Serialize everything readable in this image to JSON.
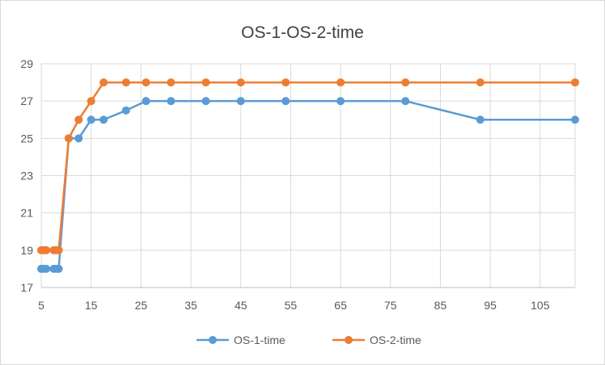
{
  "chart_data": {
    "type": "line",
    "title": "OS-1-OS-2-time",
    "xlabel": "",
    "ylabel": "",
    "xlim": [
      5,
      112
    ],
    "ylim": [
      17,
      29
    ],
    "x_ticks": [
      5,
      15,
      25,
      35,
      45,
      55,
      65,
      75,
      85,
      95,
      105
    ],
    "y_ticks": [
      17,
      19,
      21,
      23,
      25,
      27,
      29
    ],
    "grid": {
      "vertical": true,
      "horizontal": true
    },
    "legend_position": "bottom",
    "series": [
      {
        "name": "OS-1-time",
        "color": "#5b9bd5",
        "x": [
          5,
          5.5,
          6,
          7.5,
          8,
          8.5,
          10.5,
          12.5,
          15,
          17.5,
          22,
          26,
          31,
          38,
          45,
          54,
          65,
          78,
          93,
          112
        ],
        "y": [
          18,
          18,
          18,
          18,
          18,
          18,
          25,
          25,
          26,
          26,
          26.5,
          27,
          27,
          27,
          27,
          27,
          27,
          27,
          26,
          26
        ]
      },
      {
        "name": "OS-2-time",
        "color": "#ed7d31",
        "x": [
          5,
          5.5,
          6,
          7.5,
          8,
          8.5,
          10.5,
          12.5,
          15,
          17.5,
          22,
          26,
          31,
          38,
          45,
          54,
          65,
          78,
          93,
          112
        ],
        "y": [
          19,
          19,
          19,
          19,
          19,
          19,
          25,
          26,
          27,
          28,
          28,
          28,
          28,
          28,
          28,
          28,
          28,
          28,
          28,
          28
        ]
      }
    ]
  }
}
